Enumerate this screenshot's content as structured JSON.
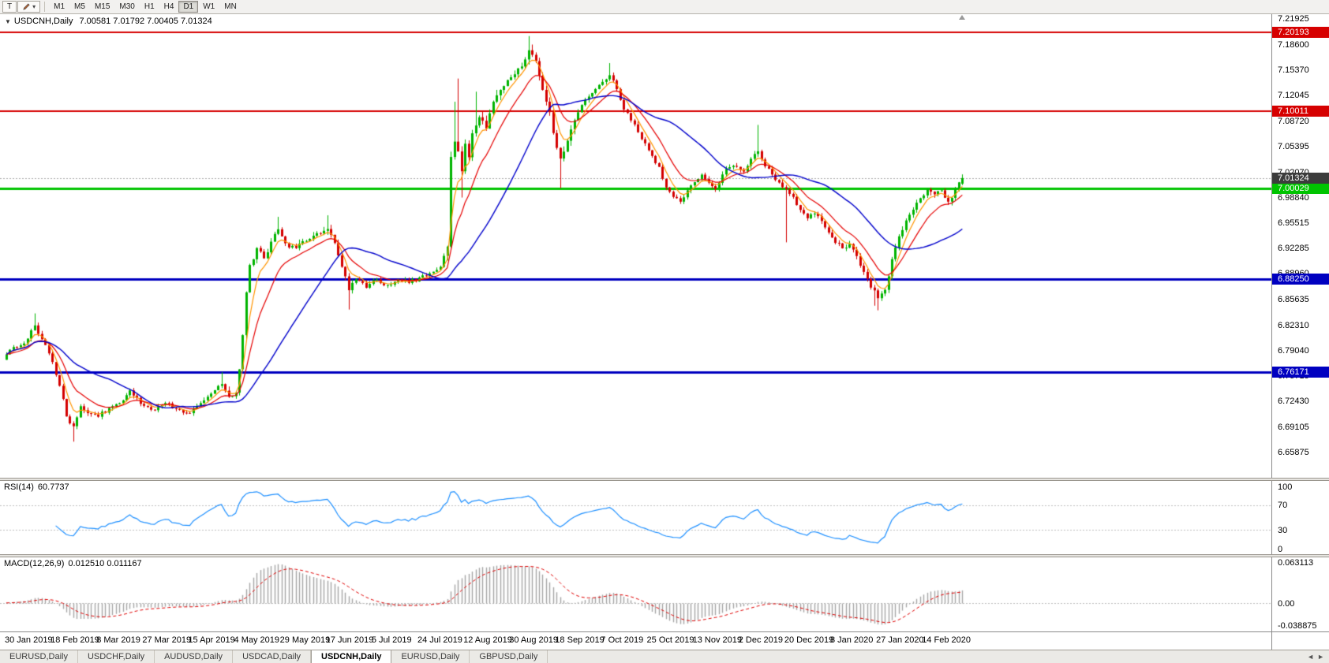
{
  "toolbar": {
    "t_button_label": "T",
    "draw_tool_caret": "▾",
    "timeframes": [
      "M1",
      "M5",
      "M15",
      "M30",
      "H1",
      "H4",
      "D1",
      "W1",
      "MN"
    ],
    "active_timeframe": "D1"
  },
  "chart": {
    "collapse_caret": "▼",
    "symbol_title": "USDCNH,Daily",
    "ohlc_text": "7.00581 7.01792 7.00405 7.01324",
    "current_price_label": "7.01324",
    "price_range": {
      "top": 7.2253,
      "bottom": 6.6253
    },
    "y_axis_labels": [
      "7.21925",
      "7.18600",
      "7.15370",
      "7.12045",
      "7.08720",
      "7.05395",
      "7.02070",
      "6.98840",
      "6.95515",
      "6.92285",
      "6.88960",
      "6.85635",
      "6.82310",
      "6.79040",
      "6.75715",
      "6.72430",
      "6.69105",
      "6.65875"
    ],
    "h_lines": [
      {
        "price": 7.20193,
        "label": "7.20193",
        "color": "#d60000",
        "width": 2
      },
      {
        "price": 7.10011,
        "label": "7.10011",
        "color": "#d60000",
        "width": 2
      },
      {
        "price": 7.00029,
        "label": "7.00029",
        "color": "#00c400",
        "width": 3
      },
      {
        "price": 6.8825,
        "label": "6.88250",
        "color": "#0000c0",
        "width": 3
      },
      {
        "price": 6.76171,
        "label": "6.76171",
        "color": "#0000c0",
        "width": 3
      }
    ],
    "colors": {
      "bull": "#00b400",
      "bear": "#d40000",
      "ma_fast": "#ff9500",
      "ma_mid": "#e60000",
      "ma_slow": "#0000cc",
      "rsi_line": "#1e90ff",
      "rsi_level": "#c0c0c0",
      "macd_hist": "#a6a6a6",
      "macd_signal": "#e00000",
      "current_price_line": "#aaaaaa",
      "current_tag_bg": "#3c3c3c"
    },
    "date_labels": [
      "30 Jan 2019",
      "18 Feb 2019",
      "8 Mar 2019",
      "27 Mar 2019",
      "15 Apr 2019",
      "4 May 2019",
      "29 May 2019",
      "17 Jun 2019",
      "5 Jul 2019",
      "24 Jul 2019",
      "12 Aug 2019",
      "30 Aug 2019",
      "18 Sep 2019",
      "7 Oct 2019",
      "25 Oct 2019",
      "13 Nov 2019",
      "2 Dec 2019",
      "20 Dec 2019",
      "8 Jan 2020",
      "27 Jan 2020",
      "14 Feb 2020"
    ]
  },
  "chart_data": {
    "type": "candlestick",
    "symbol": "USDCNH",
    "timeframe": "Daily",
    "bar_count": 272,
    "close_anchors": [
      [
        0,
        6.785
      ],
      [
        3,
        6.795
      ],
      [
        6,
        6.805
      ],
      [
        8,
        6.822
      ],
      [
        10,
        6.805
      ],
      [
        13,
        6.775
      ],
      [
        15,
        6.745
      ],
      [
        17,
        6.705
      ],
      [
        19,
        6.692
      ],
      [
        21,
        6.718
      ],
      [
        24,
        6.708
      ],
      [
        26,
        6.705
      ],
      [
        29,
        6.716
      ],
      [
        32,
        6.722
      ],
      [
        35,
        6.738
      ],
      [
        37,
        6.728
      ],
      [
        39,
        6.718
      ],
      [
        42,
        6.712
      ],
      [
        45,
        6.722
      ],
      [
        48,
        6.714
      ],
      [
        52,
        6.708
      ],
      [
        55,
        6.722
      ],
      [
        58,
        6.734
      ],
      [
        61,
        6.746
      ],
      [
        63,
        6.73
      ],
      [
        65,
        6.736
      ],
      [
        66,
        6.765
      ],
      [
        67,
        6.81
      ],
      [
        68,
        6.865
      ],
      [
        69,
        6.9
      ],
      [
        71,
        6.922
      ],
      [
        73,
        6.91
      ],
      [
        75,
        6.93
      ],
      [
        77,
        6.946
      ],
      [
        79,
        6.928
      ],
      [
        82,
        6.922
      ],
      [
        85,
        6.932
      ],
      [
        88,
        6.942
      ],
      [
        91,
        6.948
      ],
      [
        93,
        6.93
      ],
      [
        95,
        6.898
      ],
      [
        97,
        6.868
      ],
      [
        99,
        6.882
      ],
      [
        102,
        6.872
      ],
      [
        105,
        6.882
      ],
      [
        108,
        6.874
      ],
      [
        111,
        6.882
      ],
      [
        114,
        6.878
      ],
      [
        117,
        6.884
      ],
      [
        120,
        6.89
      ],
      [
        123,
        6.898
      ],
      [
        125,
        6.925
      ],
      [
        126,
        7.04
      ],
      [
        127,
        7.06
      ],
      [
        128,
        7.048
      ],
      [
        129,
        7.022
      ],
      [
        130,
        7.058
      ],
      [
        131,
        7.04
      ],
      [
        132,
        7.072
      ],
      [
        134,
        7.092
      ],
      [
        136,
        7.078
      ],
      [
        138,
        7.112
      ],
      [
        140,
        7.128
      ],
      [
        142,
        7.14
      ],
      [
        144,
        7.148
      ],
      [
        146,
        7.158
      ],
      [
        148,
        7.178
      ],
      [
        150,
        7.165
      ],
      [
        152,
        7.128
      ],
      [
        154,
        7.098
      ],
      [
        155,
        7.072
      ],
      [
        157,
        7.038
      ],
      [
        159,
        7.062
      ],
      [
        161,
        7.088
      ],
      [
        163,
        7.108
      ],
      [
        165,
        7.118
      ],
      [
        167,
        7.128
      ],
      [
        169,
        7.138
      ],
      [
        171,
        7.146
      ],
      [
        173,
        7.128
      ],
      [
        175,
        7.102
      ],
      [
        177,
        7.088
      ],
      [
        179,
        7.072
      ],
      [
        181,
        7.058
      ],
      [
        183,
        7.042
      ],
      [
        185,
        7.028
      ],
      [
        187,
        7.002
      ],
      [
        189,
        6.988
      ],
      [
        191,
        6.982
      ],
      [
        193,
        6.998
      ],
      [
        195,
        7.008
      ],
      [
        197,
        7.018
      ],
      [
        199,
        7.008
      ],
      [
        201,
        6.998
      ],
      [
        203,
        7.018
      ],
      [
        205,
        7.028
      ],
      [
        207,
        7.028
      ],
      [
        209,
        7.022
      ],
      [
        211,
        7.038
      ],
      [
        213,
        7.048
      ],
      [
        215,
        7.028
      ],
      [
        217,
        7.018
      ],
      [
        219,
        7.008
      ],
      [
        221,
        6.998
      ],
      [
        223,
        6.988
      ],
      [
        225,
        6.972
      ],
      [
        227,
        6.962
      ],
      [
        229,
        6.968
      ],
      [
        231,
        6.958
      ],
      [
        233,
        6.942
      ],
      [
        235,
        6.93
      ],
      [
        237,
        6.922
      ],
      [
        239,
        6.928
      ],
      [
        241,
        6.912
      ],
      [
        243,
        6.892
      ],
      [
        245,
        6.872
      ],
      [
        247,
        6.858
      ],
      [
        249,
        6.868
      ],
      [
        251,
        6.908
      ],
      [
        253,
        6.938
      ],
      [
        255,
        6.958
      ],
      [
        257,
        6.972
      ],
      [
        259,
        6.988
      ],
      [
        261,
        6.998
      ],
      [
        263,
        6.992
      ],
      [
        265,
        6.998
      ],
      [
        267,
        6.982
      ],
      [
        269,
        6.998
      ],
      [
        271,
        7.013
      ]
    ],
    "wick_overrides": [
      {
        "i": 8,
        "high": 6.838
      },
      {
        "i": 19,
        "low": 6.672
      },
      {
        "i": 61,
        "high": 6.762
      },
      {
        "i": 77,
        "high": 6.963
      },
      {
        "i": 91,
        "high": 6.965
      },
      {
        "i": 97,
        "low": 6.843
      },
      {
        "i": 127,
        "high": 7.112
      },
      {
        "i": 128,
        "high": 7.142
      },
      {
        "i": 129,
        "low": 6.988
      },
      {
        "i": 133,
        "high": 7.125
      },
      {
        "i": 148,
        "high": 7.197
      },
      {
        "i": 149,
        "high": 7.186
      },
      {
        "i": 157,
        "low": 7.0
      },
      {
        "i": 171,
        "high": 7.162
      },
      {
        "i": 213,
        "high": 7.082
      },
      {
        "i": 221,
        "low": 6.93
      },
      {
        "i": 246,
        "low": 6.848
      },
      {
        "i": 247,
        "low": 6.842
      }
    ],
    "last_bar": {
      "o": 7.00581,
      "h": 7.01792,
      "l": 7.00405,
      "c": 7.01324
    },
    "moving_averages": [
      {
        "type": "ema",
        "period": 5,
        "color_key": "ma_fast"
      },
      {
        "type": "ema",
        "period": 12,
        "color_key": "ma_mid"
      },
      {
        "type": "sma",
        "period": 30,
        "color_key": "ma_slow"
      }
    ],
    "indicators": {
      "rsi_period": 14,
      "macd_params": [
        12,
        26,
        9
      ]
    }
  },
  "rsi": {
    "name": "RSI(14)",
    "value": "60.7737",
    "axis_labels": [
      "100",
      "70",
      "30",
      "0"
    ],
    "axis_values": [
      100,
      70,
      30,
      0
    ],
    "levels": [
      70,
      30
    ]
  },
  "macd": {
    "name": "MACD(12,26,9)",
    "values": "0.012510 0.011167",
    "axis_top": "0.063113",
    "axis_zero": "0.00",
    "axis_bottom": "-0.038875"
  },
  "tabs": {
    "items": [
      "EURUSD,Daily",
      "USDCHF,Daily",
      "AUDUSD,Daily",
      "USDCAD,Daily",
      "USDCNH,Daily",
      "EURUSD,Daily",
      "GBPUSD,Daily"
    ],
    "active_index": 4,
    "scroll_left": "◄",
    "scroll_right": "►"
  }
}
